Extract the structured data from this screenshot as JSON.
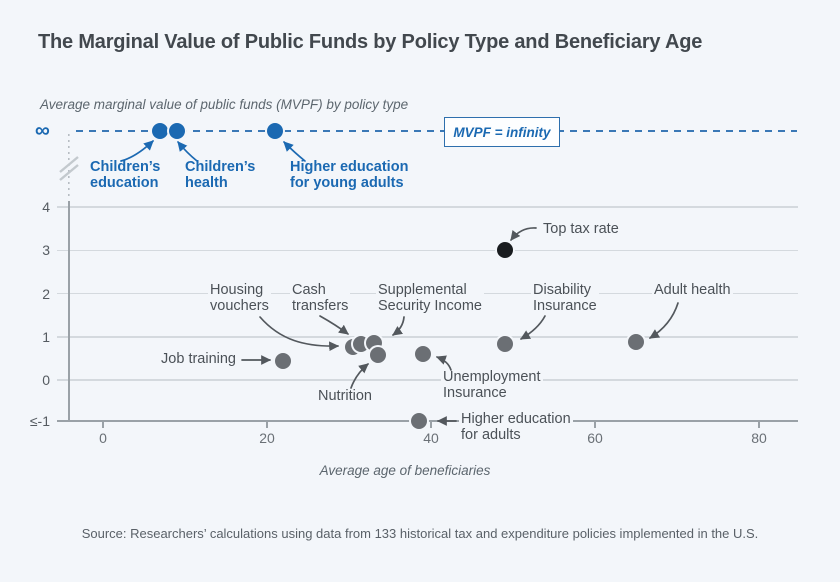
{
  "page": {
    "title": "The Marginal Value of Public Funds by Policy Type and Beneficiary Age",
    "source": "Source: Researchers’ calculations using data from 133 historical tax and expenditure policies implemented in the U.S."
  },
  "colors": {
    "background": "#f3f6fa",
    "accent_blue": "#1b69b2",
    "gray_dot": "#6b6f74",
    "black_dot": "#191c1f",
    "gridline": "#d4d9de"
  },
  "infinity_box": {
    "label": "MVPF = infinity"
  },
  "chart_data": {
    "type": "scatter",
    "title": "The Marginal Value of Public Funds by Policy Type and Beneficiary Age",
    "ylabel": "Average marginal value of public funds (MVPF) by policy type",
    "xlabel": "Average age of beneficiaries",
    "x_ticks": [
      0,
      20,
      40,
      60,
      80
    ],
    "y_ticks": [
      "∞",
      "4",
      "3",
      "2",
      "1",
      "0",
      "≤-1"
    ],
    "xlim": [
      -4,
      85
    ],
    "axis_note": "y-axis broken: top dashed row = infinity; bottom row = MVPF ≤ -1; grid on",
    "points": [
      {
        "id": "childrens-education",
        "label": "Children’s\neducation",
        "age": 7,
        "mvpf": "infinity",
        "color": "blue"
      },
      {
        "id": "childrens-health",
        "label": "Children’s\nhealth",
        "age": 9,
        "mvpf": "infinity",
        "color": "blue"
      },
      {
        "id": "higher-education-young-adults",
        "label": "Higher education\nfor young adults",
        "age": 21,
        "mvpf": "infinity",
        "color": "blue"
      },
      {
        "id": "top-tax-rate",
        "label": "Top tax rate",
        "age": 49,
        "mvpf": 3.0,
        "color": "black"
      },
      {
        "id": "job-training",
        "label": "Job training",
        "age": 22,
        "mvpf": 0.44,
        "color": "gray"
      },
      {
        "id": "housing-vouchers",
        "label": "Housing\nvouchers",
        "age": 30.5,
        "mvpf": 0.77,
        "color": "gray"
      },
      {
        "id": "cash-transfers",
        "label": "Cash\ntransfers",
        "age": 31.5,
        "mvpf": 0.84,
        "color": "gray"
      },
      {
        "id": "supplemental-security-income",
        "label": "Supplemental\nSecurity Income",
        "age": 33,
        "mvpf": 0.86,
        "color": "gray"
      },
      {
        "id": "nutrition",
        "label": "Nutrition",
        "age": 33.5,
        "mvpf": 0.58,
        "color": "gray"
      },
      {
        "id": "unemployment-insurance",
        "label": "Unemployment\nInsurance",
        "age": 39,
        "mvpf": 0.61,
        "color": "gray"
      },
      {
        "id": "disability-insurance",
        "label": "Disability\nInsurance",
        "age": 49,
        "mvpf": 0.84,
        "color": "gray"
      },
      {
        "id": "adult-health",
        "label": "Adult health",
        "age": 65,
        "mvpf": 0.88,
        "color": "gray"
      },
      {
        "id": "higher-education-adults",
        "label": "Higher education\nfor adults",
        "age": 38.5,
        "mvpf": "≤-1",
        "color": "gray"
      }
    ]
  }
}
